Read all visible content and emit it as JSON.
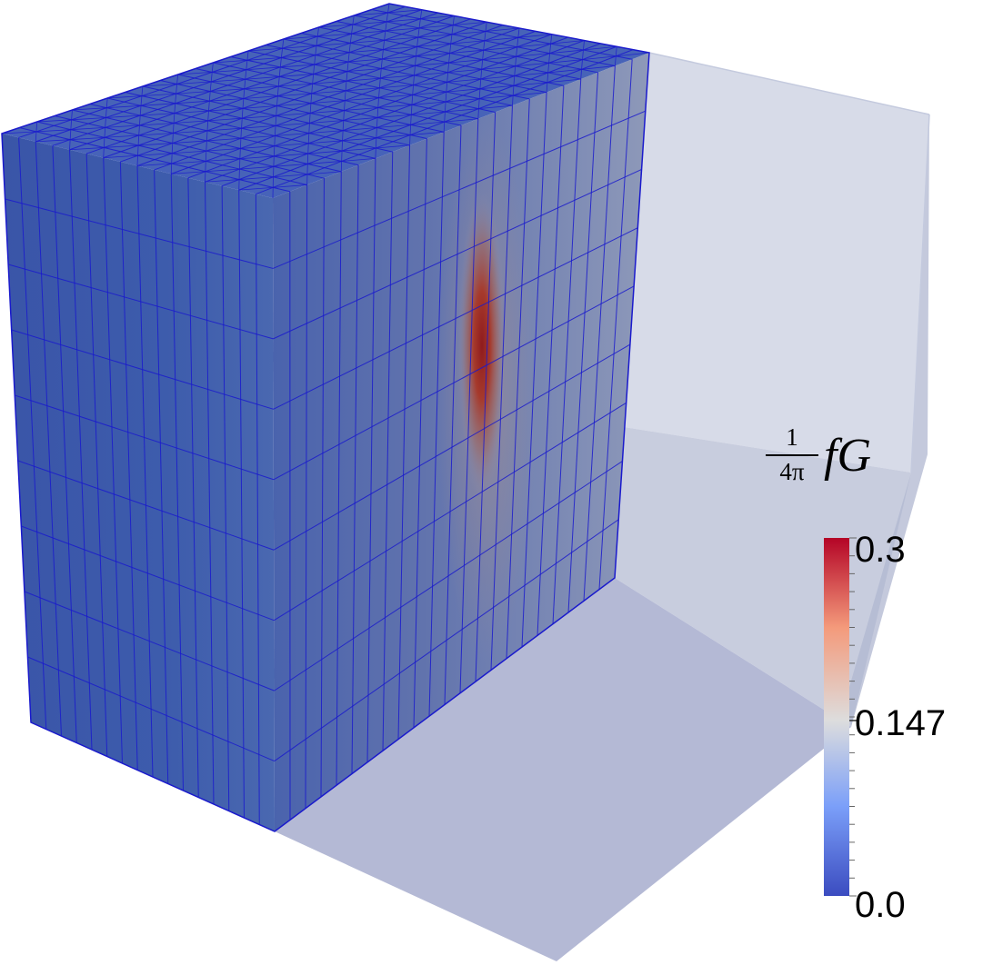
{
  "colorbar": {
    "title_num": "1",
    "title_den": "4π",
    "title_expr": "fG",
    "max_label": "0.3",
    "mid_label": "0.147",
    "min_label": "0.0",
    "min_value": 0.0,
    "mid_value": 0.147,
    "max_value": 0.3,
    "colors": {
      "low": "#3b4cc0",
      "mid": "#dddddd",
      "high": "#b40426"
    }
  },
  "mesh": {
    "face_color": "#3a56a8",
    "edge_color": "#1a1acc",
    "domain_color": "#b8c0d6"
  }
}
